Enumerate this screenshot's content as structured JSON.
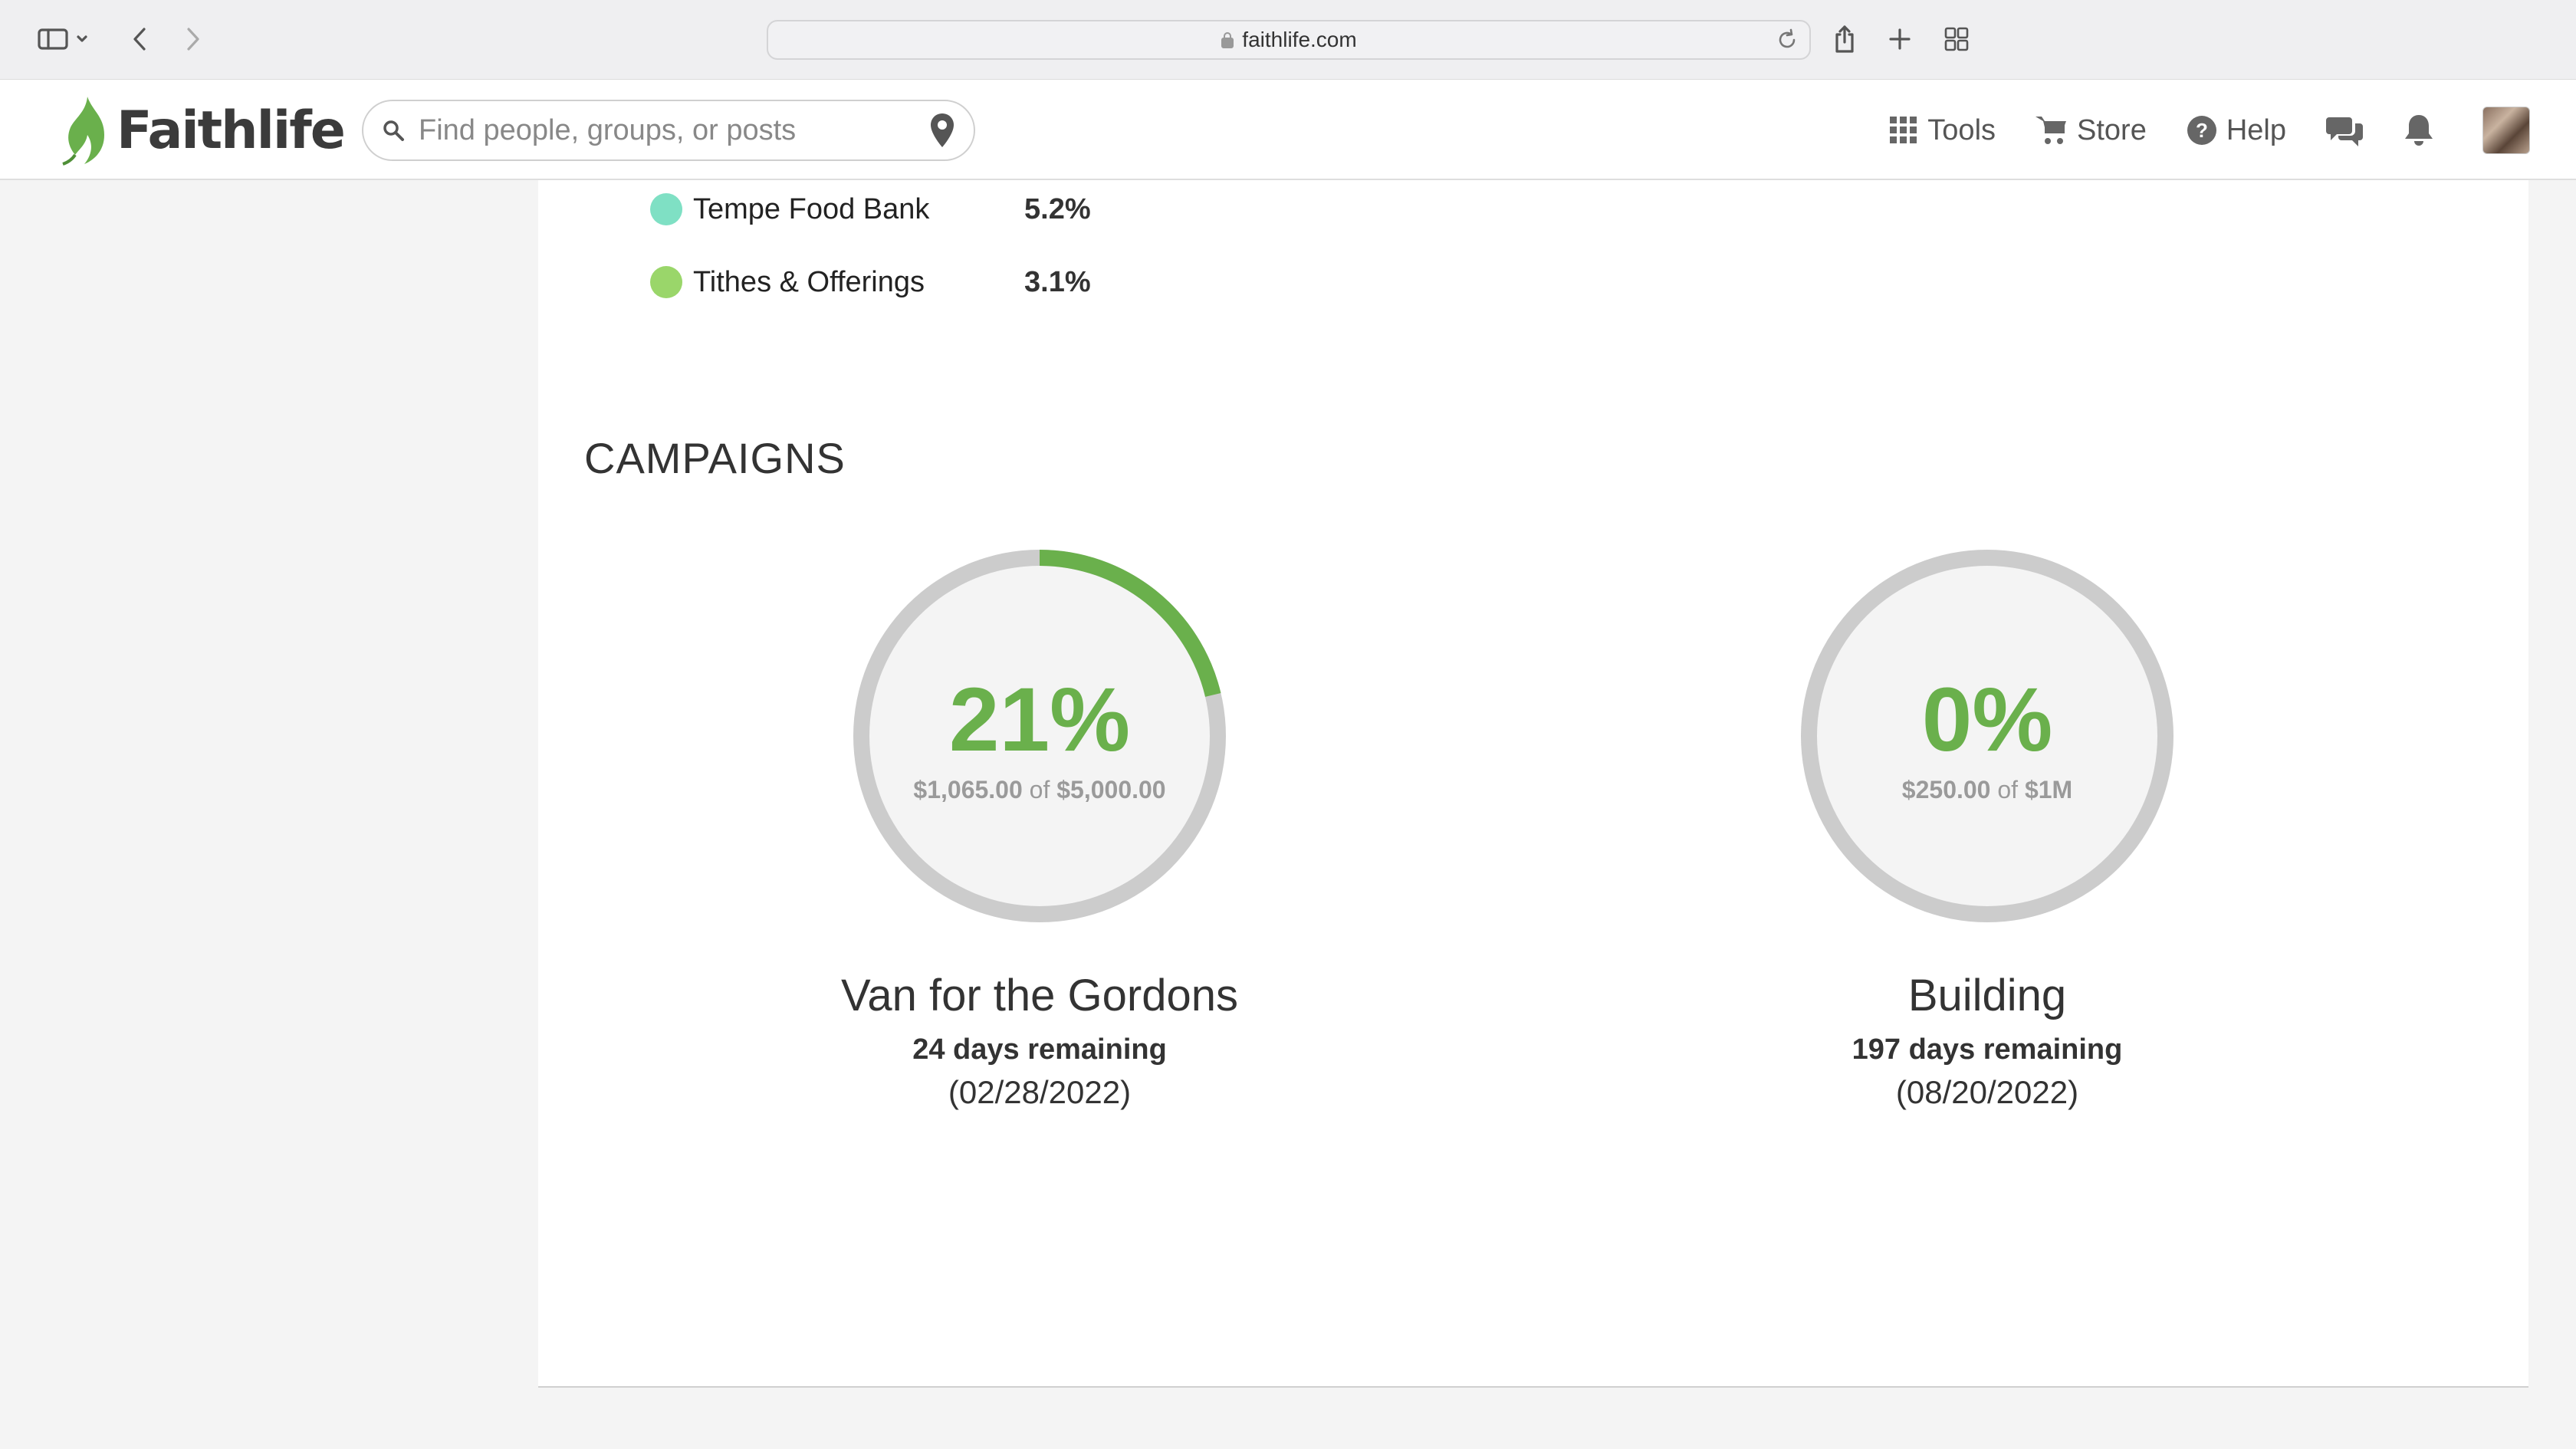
{
  "browser": {
    "url": "faithlife.com"
  },
  "header": {
    "logo_text": "Faithlife",
    "search_placeholder": "Find people, groups, or posts",
    "nav": {
      "tools": "Tools",
      "store": "Store",
      "help": "Help"
    }
  },
  "legend": [
    {
      "label": "Tempe Food Bank",
      "value": "5.2%",
      "color": "#7fe0c4"
    },
    {
      "label": "Tithes & Offerings",
      "value": "3.1%",
      "color": "#9ad66a"
    }
  ],
  "campaigns_title": "CAMPAIGNS",
  "campaigns": [
    {
      "percent_text": "21%",
      "progress": 0.213,
      "raised": "$1,065.00",
      "of": "of",
      "goal": "$5,000.00",
      "name": "Van for the Gordons",
      "days_remaining": "24 days remaining",
      "end_date": "(02/28/2022)"
    },
    {
      "percent_text": "0%",
      "progress": 0,
      "raised": "$250.00",
      "of": "of",
      "goal": "$1M",
      "name": "Building",
      "days_remaining": "197 days remaining",
      "end_date": "(08/20/2022)"
    }
  ],
  "colors": {
    "brand_green": "#6ab04c",
    "ring_track": "#cccccc",
    "ring_fill": "#f4f4f4"
  }
}
